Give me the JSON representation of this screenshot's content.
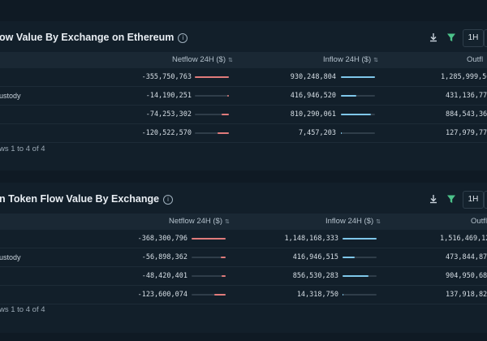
{
  "panels": [
    {
      "title": "ow Value By Exchange on Ethereum",
      "info_icon": "info-icon",
      "time_button": "1H",
      "columns": {
        "netflow": "Netflow 24H ($)",
        "inflow": "Inflow 24H ($)",
        "outflow": "Outfl"
      },
      "rows": [
        {
          "name": "",
          "netflow": "-355,750,763",
          "netflow_fraction": 1.0,
          "inflow": "930,248,804",
          "inflow_fraction": 1.0,
          "outflow": "1,285,999,56"
        },
        {
          "name": "ustody",
          "netflow": "-14,190,251",
          "netflow_fraction": 0.04,
          "inflow": "416,946,520",
          "inflow_fraction": 0.45,
          "outflow": "431,136,77"
        },
        {
          "name": "",
          "netflow": "-74,253,302",
          "netflow_fraction": 0.21,
          "inflow": "810,290,061",
          "inflow_fraction": 0.87,
          "outflow": "884,543,36"
        },
        {
          "name": "",
          "netflow": "-120,522,570",
          "netflow_fraction": 0.34,
          "inflow": "7,457,203",
          "inflow_fraction": 0.01,
          "outflow": "127,979,77"
        }
      ],
      "footer": "ws 1 to 4 of 4"
    },
    {
      "title": "n Token Flow Value By Exchange",
      "info_icon": "info-icon",
      "time_button": "1H",
      "columns": {
        "netflow": "Netflow 24H ($)",
        "inflow": "Inflow 24H ($)",
        "outflow": "Outfl"
      },
      "rows": [
        {
          "name": "",
          "netflow": "-368,300,796",
          "netflow_fraction": 1.0,
          "inflow": "1,148,168,333",
          "inflow_fraction": 1.0,
          "outflow": "1,516,469,12"
        },
        {
          "name": "ustody",
          "netflow": "-56,898,362",
          "netflow_fraction": 0.15,
          "inflow": "416,946,515",
          "inflow_fraction": 0.36,
          "outflow": "473,844,87"
        },
        {
          "name": "",
          "netflow": "-48,420,401",
          "netflow_fraction": 0.13,
          "inflow": "856,530,283",
          "inflow_fraction": 0.75,
          "outflow": "904,950,68"
        },
        {
          "name": "",
          "netflow": "-123,600,074",
          "netflow_fraction": 0.34,
          "inflow": "14,318,750",
          "inflow_fraction": 0.01,
          "outflow": "137,918,82"
        }
      ],
      "footer": "ws 1 to 4 of 4"
    }
  ],
  "colors": {
    "negative": "#e07b7b",
    "positive": "#7fc7ea",
    "filter": "#4cc38a"
  }
}
